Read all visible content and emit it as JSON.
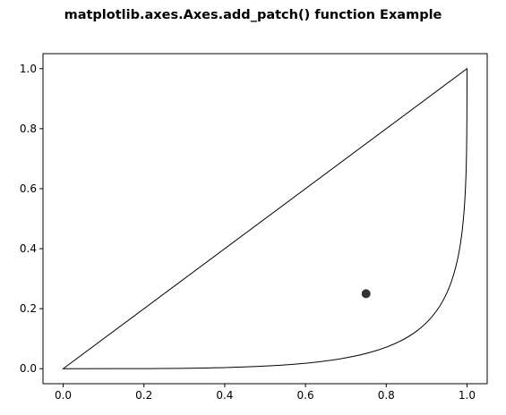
{
  "chart_data": {
    "type": "line",
    "title": "matplotlib.axes.Axes.add_patch() function Example",
    "xlabel": "",
    "ylabel": "",
    "xlim": [
      -0.05,
      1.05
    ],
    "ylim": [
      -0.05,
      1.05
    ],
    "xticks": [
      "0.0",
      "0.2",
      "0.4",
      "0.6",
      "0.8",
      "1.0"
    ],
    "yticks": [
      "0.0",
      "0.2",
      "0.4",
      "0.6",
      "0.8",
      "1.0"
    ],
    "grid": false,
    "series": [
      {
        "kind": "closed-bezier-path",
        "stroke": "#000000",
        "fill": "none",
        "segments": [
          {
            "type": "line",
            "from": [
              0,
              0
            ],
            "to": [
              1,
              1
            ]
          },
          {
            "type": "cubic",
            "from": [
              1,
              1
            ],
            "control1": [
              1,
              0
            ],
            "control2": [
              1,
              0
            ],
            "to": [
              0,
              0
            ]
          }
        ]
      },
      {
        "kind": "scatter",
        "color": "#333333",
        "points": [
          [
            0.75,
            0.25
          ]
        ]
      }
    ]
  }
}
